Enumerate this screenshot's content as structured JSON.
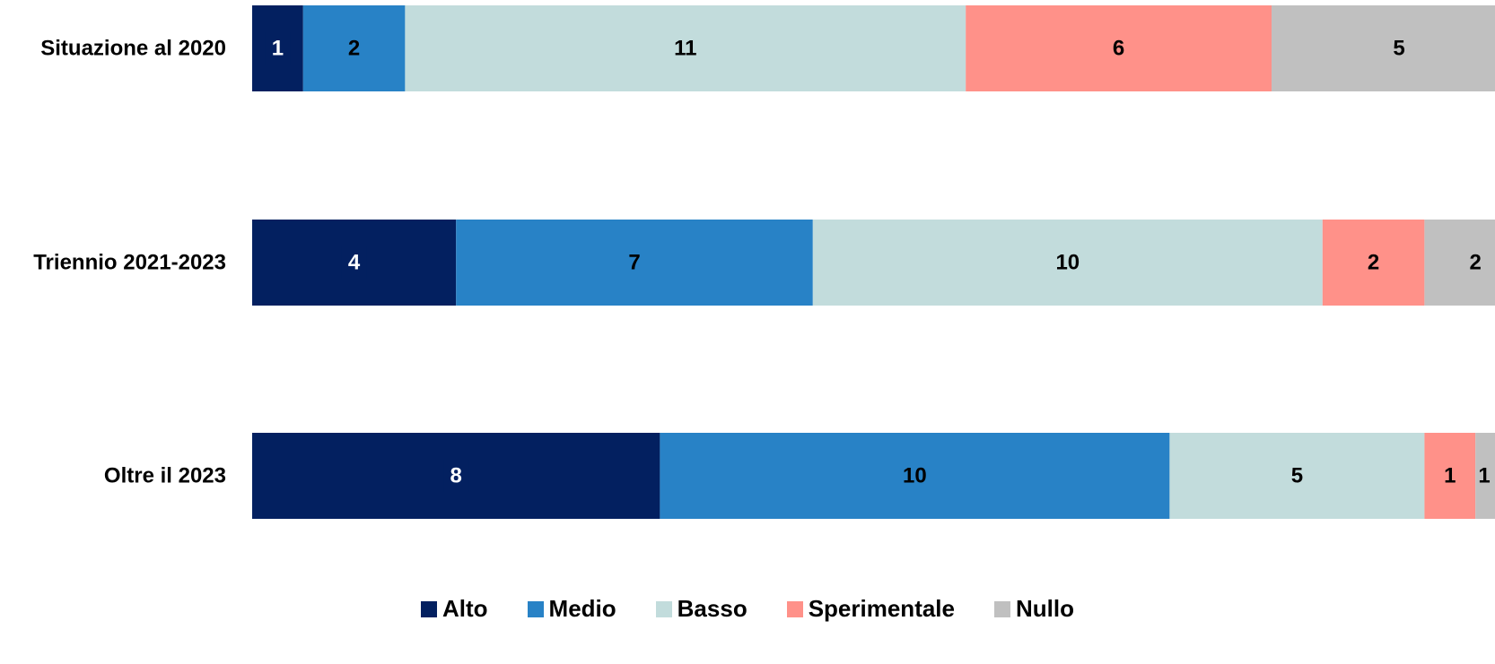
{
  "chart_data": {
    "type": "bar",
    "orientation": "horizontal",
    "stacked": true,
    "categories": [
      "Situazione al 2020",
      "Triennio 2021-2023",
      "Oltre il 2023"
    ],
    "series": [
      {
        "name": "Alto",
        "color": "#032060",
        "label_color": "#ffffff",
        "values": [
          1,
          4,
          8
        ]
      },
      {
        "name": "Medio",
        "color": "#2882c6",
        "label_color": "#000000",
        "values": [
          2,
          7,
          10
        ]
      },
      {
        "name": "Basso",
        "color": "#c2dcdc",
        "label_color": "#000000",
        "values": [
          11,
          10,
          5
        ]
      },
      {
        "name": "Sperimentale",
        "color": "#ff9189",
        "label_color": "#000000",
        "values": [
          6,
          2,
          1
        ]
      },
      {
        "name": "Nullo",
        "color": "#c0c0c0",
        "label_color": "#000000",
        "values": [
          5,
          2,
          1
        ]
      }
    ],
    "xlim": [
      0,
      25
    ],
    "grid": false,
    "legend_position": "bottom"
  }
}
